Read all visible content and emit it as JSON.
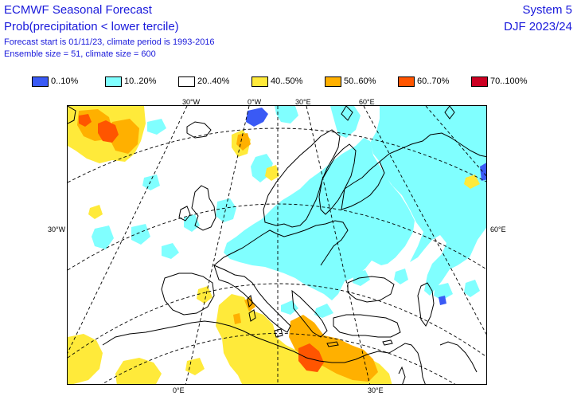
{
  "header": {
    "title": "ECMWF Seasonal Forecast",
    "subtitle": "Prob(precipitation < lower tercile)",
    "forecast_info": "Forecast start is 01/11/23, climate period is 1993-2016",
    "ensemble_info": "Ensemble size = 51, climate size = 600",
    "system": "System 5",
    "season": "DJF 2023/24"
  },
  "legend": [
    {
      "label": "0..10%",
      "color": "#3a5af5"
    },
    {
      "label": "10..20%",
      "color": "#80ffff"
    },
    {
      "label": "20..40%",
      "color": "#ffffff"
    },
    {
      "label": "40..50%",
      "color": "#ffea3a"
    },
    {
      "label": "50..60%",
      "color": "#ffb000"
    },
    {
      "label": "60..70%",
      "color": "#ff5500"
    },
    {
      "label": "70..100%",
      "color": "#cc0022"
    }
  ],
  "gridlabels": {
    "top": [
      "30°W",
      "0°W",
      "30°E",
      "60°E"
    ],
    "left": "30°W",
    "right": "60°E",
    "bottom": [
      "0°E",
      "30°E"
    ]
  },
  "colors": {
    "text": "#1a1adb",
    "cyan": "#80ffff",
    "yellow": "#ffea3a",
    "orange": "#ffb000",
    "red": "#ff5500",
    "blue": "#3a5af5"
  }
}
